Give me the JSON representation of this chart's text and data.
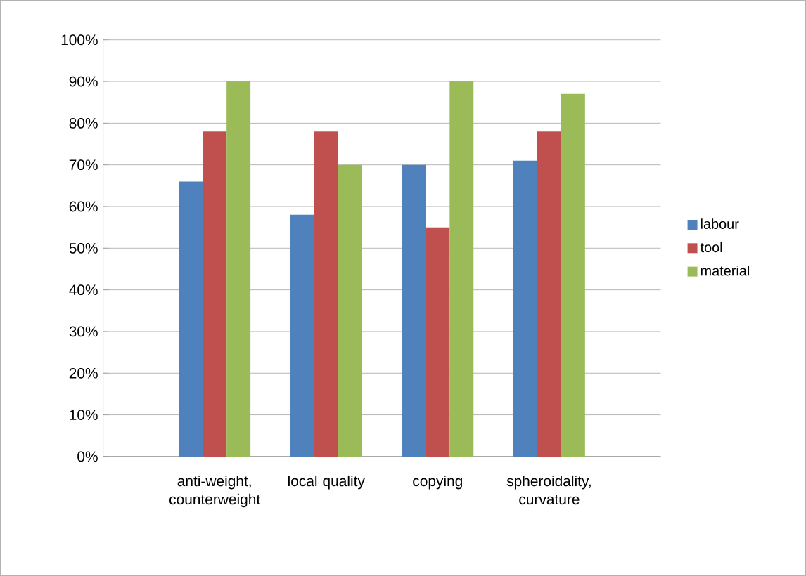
{
  "chart_data": {
    "type": "bar",
    "categories": [
      "anti-weight, counterweight",
      "local quality",
      "copying",
      "spheroidality, curvature"
    ],
    "series": [
      {
        "name": "labour",
        "color": "#4f81bd",
        "values": [
          66,
          58,
          70,
          71
        ]
      },
      {
        "name": "tool",
        "color": "#c0504d",
        "values": [
          78,
          78,
          55,
          78
        ]
      },
      {
        "name": "material",
        "color": "#9bbb59",
        "values": [
          90,
          70,
          90,
          87
        ]
      }
    ],
    "ylim": [
      0,
      100
    ],
    "yticks": [
      {
        "value": 0,
        "label": "0%"
      },
      {
        "value": 10,
        "label": "10%"
      },
      {
        "value": 20,
        "label": "20%"
      },
      {
        "value": 30,
        "label": "30%"
      },
      {
        "value": 40,
        "label": "40%"
      },
      {
        "value": 50,
        "label": "50%"
      },
      {
        "value": 60,
        "label": "60%"
      },
      {
        "value": 70,
        "label": "70%"
      },
      {
        "value": 80,
        "label": "80%"
      },
      {
        "value": 90,
        "label": "90%"
      },
      {
        "value": 100,
        "label": "100%"
      }
    ],
    "grid": "y",
    "legend": "right"
  }
}
